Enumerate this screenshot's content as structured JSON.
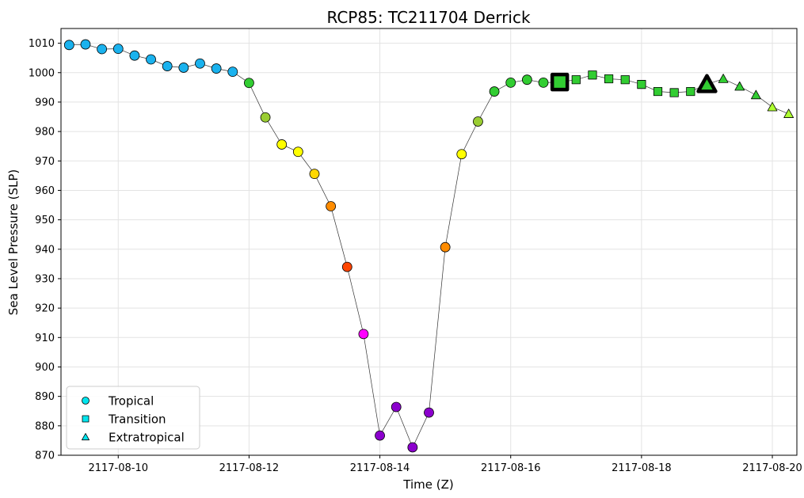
{
  "chart_data": {
    "type": "scatter",
    "title": "RCP85: TC211704 Derrick",
    "xlabel": "Time (Z)",
    "ylabel": "Sea Level Pressure (SLP)",
    "x_unit": "date",
    "xlim": [
      "2117-08-09T03:00",
      "2117-08-20T09:00"
    ],
    "ylim": [
      870,
      1015
    ],
    "x_ticks": [
      "2117-08-10",
      "2117-08-12",
      "2117-08-14",
      "2117-08-16",
      "2117-08-18",
      "2117-08-20"
    ],
    "y_ticks": [
      870,
      880,
      890,
      900,
      910,
      920,
      930,
      940,
      950,
      960,
      970,
      980,
      990,
      1000,
      1010
    ],
    "grid": true,
    "legend": {
      "placement": "lower-left",
      "entries": [
        {
          "label": "Tropical",
          "marker": "circle",
          "color": "#00e5ee"
        },
        {
          "label": "Transition",
          "marker": "square",
          "color": "#00e5ee"
        },
        {
          "label": "Extratropical",
          "marker": "triangle",
          "color": "#00e5ee"
        }
      ]
    },
    "line_color": "#333333",
    "points": [
      {
        "t": "2117-08-09T06:00",
        "slp": 1009.4,
        "phase": "tropical",
        "color": "#1ab2ee"
      },
      {
        "t": "2117-08-09T12:00",
        "slp": 1009.6,
        "phase": "tropical",
        "color": "#1ab2ee"
      },
      {
        "t": "2117-08-09T18:00",
        "slp": 1008.0,
        "phase": "tropical",
        "color": "#1ab2ee"
      },
      {
        "t": "2117-08-10T00:00",
        "slp": 1008.1,
        "phase": "tropical",
        "color": "#1ab2ee"
      },
      {
        "t": "2117-08-10T06:00",
        "slp": 1005.8,
        "phase": "tropical",
        "color": "#1ab2ee"
      },
      {
        "t": "2117-08-10T12:00",
        "slp": 1004.5,
        "phase": "tropical",
        "color": "#1ab2ee"
      },
      {
        "t": "2117-08-10T18:00",
        "slp": 1002.2,
        "phase": "tropical",
        "color": "#1ab2ee"
      },
      {
        "t": "2117-08-11T00:00",
        "slp": 1001.7,
        "phase": "tropical",
        "color": "#1ab2ee"
      },
      {
        "t": "2117-08-11T06:00",
        "slp": 1003.1,
        "phase": "tropical",
        "color": "#1ab2ee"
      },
      {
        "t": "2117-08-11T12:00",
        "slp": 1001.4,
        "phase": "tropical",
        "color": "#1ab2ee"
      },
      {
        "t": "2117-08-11T18:00",
        "slp": 1000.3,
        "phase": "tropical",
        "color": "#1ab2ee"
      },
      {
        "t": "2117-08-12T00:00",
        "slp": 996.5,
        "phase": "tropical",
        "color": "#32cd32"
      },
      {
        "t": "2117-08-12T06:00",
        "slp": 984.8,
        "phase": "tropical",
        "color": "#9acd32"
      },
      {
        "t": "2117-08-12T12:00",
        "slp": 975.6,
        "phase": "tropical",
        "color": "#ffff00"
      },
      {
        "t": "2117-08-12T18:00",
        "slp": 973.1,
        "phase": "tropical",
        "color": "#ffff00"
      },
      {
        "t": "2117-08-13T00:00",
        "slp": 965.6,
        "phase": "tropical",
        "color": "#ffd700"
      },
      {
        "t": "2117-08-13T06:00",
        "slp": 954.6,
        "phase": "tropical",
        "color": "#ff8c00"
      },
      {
        "t": "2117-08-13T12:00",
        "slp": 934.0,
        "phase": "tropical",
        "color": "#ff4500"
      },
      {
        "t": "2117-08-13T18:00",
        "slp": 911.2,
        "phase": "tropical",
        "color": "#ff00ff"
      },
      {
        "t": "2117-08-14T00:00",
        "slp": 876.7,
        "phase": "tropical",
        "color": "#8b00cd"
      },
      {
        "t": "2117-08-14T06:00",
        "slp": 886.4,
        "phase": "tropical",
        "color": "#8b00cd"
      },
      {
        "t": "2117-08-14T12:00",
        "slp": 872.7,
        "phase": "tropical",
        "color": "#8b00cd"
      },
      {
        "t": "2117-08-14T18:00",
        "slp": 884.5,
        "phase": "tropical",
        "color": "#8b00cd"
      },
      {
        "t": "2117-08-15T00:00",
        "slp": 940.7,
        "phase": "tropical",
        "color": "#ff8c00"
      },
      {
        "t": "2117-08-15T06:00",
        "slp": 972.3,
        "phase": "tropical",
        "color": "#ffff00"
      },
      {
        "t": "2117-08-15T12:00",
        "slp": 983.4,
        "phase": "tropical",
        "color": "#9acd32"
      },
      {
        "t": "2117-08-15T18:00",
        "slp": 993.6,
        "phase": "tropical",
        "color": "#32cd32"
      },
      {
        "t": "2117-08-16T00:00",
        "slp": 996.6,
        "phase": "tropical",
        "color": "#32cd32"
      },
      {
        "t": "2117-08-16T06:00",
        "slp": 997.6,
        "phase": "tropical",
        "color": "#32cd32"
      },
      {
        "t": "2117-08-16T12:00",
        "slp": 996.6,
        "phase": "tropical",
        "color": "#32cd32"
      },
      {
        "t": "2117-08-16T18:00",
        "slp": 996.8,
        "phase": "transition",
        "color": "#32cd32",
        "highlight": true
      },
      {
        "t": "2117-08-17T00:00",
        "slp": 997.6,
        "phase": "transition",
        "color": "#32cd32"
      },
      {
        "t": "2117-08-17T06:00",
        "slp": 999.2,
        "phase": "transition",
        "color": "#32cd32"
      },
      {
        "t": "2117-08-17T12:00",
        "slp": 997.9,
        "phase": "transition",
        "color": "#32cd32"
      },
      {
        "t": "2117-08-17T18:00",
        "slp": 997.6,
        "phase": "transition",
        "color": "#32cd32"
      },
      {
        "t": "2117-08-18T00:00",
        "slp": 996.0,
        "phase": "transition",
        "color": "#32cd32"
      },
      {
        "t": "2117-08-18T06:00",
        "slp": 993.6,
        "phase": "transition",
        "color": "#32cd32"
      },
      {
        "t": "2117-08-18T12:00",
        "slp": 993.2,
        "phase": "transition",
        "color": "#32cd32"
      },
      {
        "t": "2117-08-18T18:00",
        "slp": 993.6,
        "phase": "transition",
        "color": "#32cd32"
      },
      {
        "t": "2117-08-19T00:00",
        "slp": 996.0,
        "phase": "extratropical",
        "color": "#32cd32",
        "highlight": true
      },
      {
        "t": "2117-08-19T06:00",
        "slp": 997.9,
        "phase": "extratropical",
        "color": "#32cd32"
      },
      {
        "t": "2117-08-19T12:00",
        "slp": 995.3,
        "phase": "extratropical",
        "color": "#32cd32"
      },
      {
        "t": "2117-08-19T18:00",
        "slp": 992.4,
        "phase": "extratropical",
        "color": "#32cd32"
      },
      {
        "t": "2117-08-20T00:00",
        "slp": 988.3,
        "phase": "extratropical",
        "color": "#adff2f"
      },
      {
        "t": "2117-08-20T06:00",
        "slp": 986.0,
        "phase": "extratropical",
        "color": "#adff2f"
      }
    ]
  }
}
